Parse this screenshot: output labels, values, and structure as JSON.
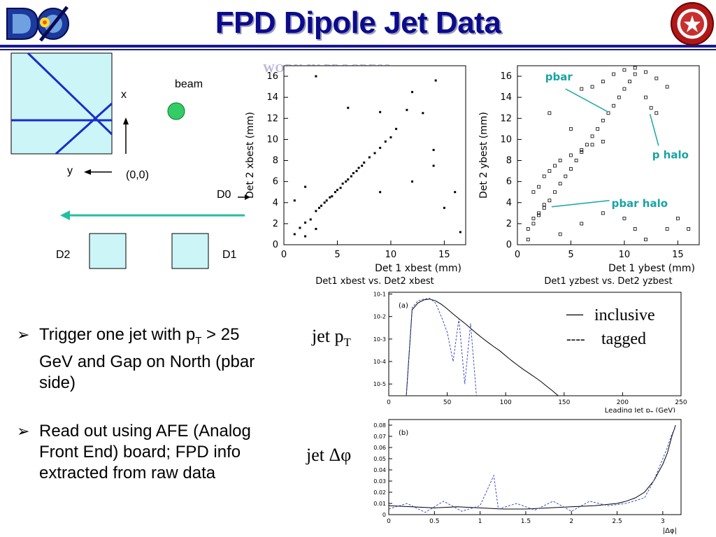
{
  "title": "FPD Dipole Jet Data",
  "watermark": "WORK IN PROGRESS",
  "geometry_diagram": {
    "beam_label": "beam",
    "x_label": "x",
    "y_label": "y",
    "origin_label": "(0,0)",
    "d0_label": "D0",
    "d1_label": "D1",
    "d2_label": "D2"
  },
  "scatter_left": {
    "ylabel": "Det 2 xbest (mm)",
    "xlabel": "Det 1 xbest (mm)",
    "caption": "Det1 xbest vs. Det2 xbest",
    "xticks": [
      "0",
      "5",
      "10",
      "15"
    ],
    "yticks": [
      "0",
      "2",
      "4",
      "6",
      "8",
      "10",
      "12",
      "14",
      "16"
    ]
  },
  "scatter_right": {
    "ylabel": "Det 2 ybest (mm)",
    "xlabel": "Det 1 ybest (mm)",
    "caption": "Det1 yzbest vs. Det2 yzbest",
    "xticks": [
      "0",
      "5",
      "10",
      "15"
    ],
    "yticks": [
      "0",
      "2",
      "4",
      "6",
      "8",
      "10",
      "12",
      "14",
      "16"
    ],
    "annotations": {
      "pbar": "pbar",
      "p_halo": "p halo",
      "pbar_halo": "pbar halo"
    },
    "annotation_color": "#1aa3a3"
  },
  "hist_pt": {
    "panel_tag": "(a)",
    "xlabel": "Leading Jet p",
    "xlabel_sub": "T",
    "xlabel_unit": " (GeV)",
    "xticks": [
      "0",
      "50",
      "100",
      "150",
      "200",
      "250"
    ],
    "yticks": [
      "10-1",
      "10-2",
      "10-3",
      "10-4",
      "10-5"
    ],
    "side_label_main": "jet p",
    "side_label_sub": "T"
  },
  "hist_dphi": {
    "panel_tag": "(b)",
    "xlabel": "|Δφ|",
    "xticks": [
      "0",
      "0.5",
      "1",
      "1.5",
      "2",
      "2.5",
      "3"
    ],
    "yticks": [
      "0",
      "0.01",
      "0.02",
      "0.03",
      "0.04",
      "0.05",
      "0.06",
      "0.07",
      "0.08"
    ],
    "side_label": "jet Δφ"
  },
  "legend": {
    "inclusive_marker": "—",
    "inclusive": "inclusive",
    "tagged_marker": "----",
    "tagged": "tagged"
  },
  "bullets": [
    {
      "marker": "➢",
      "text_a": "Trigger one jet with p",
      "text_sub": "T",
      "text_b": " > 25 GeV and Gap on North (pbar side)"
    },
    {
      "marker": "➢",
      "text_a": "Read out using AFE (Analog Front End) board; FPD info extracted from raw data",
      "text_sub": "",
      "text_b": ""
    }
  ],
  "colors": {
    "title": "#0b0b8c",
    "detector_fill": "#ccf5f7",
    "beam_arrow": "#22c0a0",
    "beam_dot": "#33cc66",
    "diagram_lines": "#1a2ccc"
  },
  "chart_data": [
    {
      "type": "scatter",
      "title": "Det1 xbest vs. Det2 xbest",
      "xlabel": "Det 1 xbest (mm)",
      "ylabel": "Det 2 xbest (mm)",
      "xlim": [
        0,
        17
      ],
      "ylim": [
        0,
        17
      ],
      "points": [
        [
          1,
          1
        ],
        [
          1.5,
          1.6
        ],
        [
          2,
          2.1
        ],
        [
          2.5,
          2.4
        ],
        [
          3,
          3.2
        ],
        [
          3.3,
          3.5
        ],
        [
          3.5,
          3.7
        ],
        [
          3.8,
          4
        ],
        [
          4,
          4.2
        ],
        [
          4.3,
          4.5
        ],
        [
          4.5,
          4.6
        ],
        [
          4.8,
          5
        ],
        [
          5,
          5.2
        ],
        [
          5.3,
          5.4
        ],
        [
          5.5,
          5.8
        ],
        [
          5.8,
          6
        ],
        [
          6,
          6.2
        ],
        [
          6.3,
          6.5
        ],
        [
          6.5,
          6.8
        ],
        [
          6.8,
          7
        ],
        [
          7,
          7.3
        ],
        [
          7.3,
          7.5
        ],
        [
          7.5,
          7.8
        ],
        [
          8,
          8.3
        ],
        [
          8.5,
          8.7
        ],
        [
          9,
          9.2
        ],
        [
          9.5,
          9.8
        ],
        [
          10,
          10.2
        ],
        [
          10.5,
          11
        ],
        [
          2,
          0.8
        ],
        [
          3,
          1.5
        ],
        [
          1,
          4.2
        ],
        [
          2,
          5.5
        ],
        [
          9,
          5
        ],
        [
          12,
          6
        ],
        [
          14,
          7.5
        ],
        [
          15,
          3.5
        ],
        [
          16.5,
          1.2
        ],
        [
          14,
          9
        ],
        [
          13,
          12.5
        ],
        [
          11.5,
          12.8
        ],
        [
          12,
          14.5
        ],
        [
          3,
          16
        ],
        [
          14.2,
          15.6
        ],
        [
          9,
          12.6
        ],
        [
          6,
          13
        ],
        [
          16,
          5
        ]
      ]
    },
    {
      "type": "scatter",
      "title": "Det1 yzbest vs. Det2 yzbest",
      "xlabel": "Det 1 ybest (mm)",
      "ylabel": "Det 2 ybest (mm)",
      "xlim": [
        0,
        17
      ],
      "ylim": [
        0,
        17
      ],
      "series": [
        {
          "name": "pbar",
          "points": [
            [
              1.5,
              2
            ],
            [
              2,
              2.8
            ],
            [
              2.5,
              3.5
            ],
            [
              3,
              4.2
            ],
            [
              3.5,
              5
            ],
            [
              4,
              5.8
            ],
            [
              4.5,
              6.5
            ],
            [
              5,
              7.2
            ],
            [
              5.5,
              8
            ],
            [
              6,
              8.8
            ],
            [
              6.5,
              9.5
            ],
            [
              7,
              10.3
            ],
            [
              7.5,
              11
            ],
            [
              8,
              11.8
            ],
            [
              8.5,
              12.5
            ],
            [
              9,
              13.2
            ],
            [
              9.5,
              14
            ],
            [
              10,
              14.8
            ],
            [
              10.5,
              15.5
            ],
            [
              11,
              16.2
            ]
          ]
        },
        {
          "name": "p halo",
          "points": [
            [
              6,
              14.8
            ],
            [
              7,
              15
            ],
            [
              8,
              15.5
            ],
            [
              9,
              16.2
            ],
            [
              10,
              16.6
            ],
            [
              11,
              16.8
            ],
            [
              12,
              16.4
            ],
            [
              12.5,
              13
            ],
            [
              13,
              12.5
            ]
          ]
        },
        {
          "name": "pbar halo",
          "points": [
            [
              1,
              1.5
            ],
            [
              1.5,
              2.5
            ],
            [
              2,
              3
            ],
            [
              2.5,
              3.8
            ],
            [
              1.5,
              5
            ],
            [
              2,
              5.5
            ],
            [
              2.5,
              6.5
            ],
            [
              3,
              7
            ],
            [
              3.5,
              7.5
            ],
            [
              4,
              8
            ],
            [
              5,
              8.5
            ],
            [
              6,
              9
            ],
            [
              7,
              9.5
            ],
            [
              8,
              9.8
            ]
          ]
        },
        {
          "name": "",
          "points": [
            [
              1,
              0.5
            ],
            [
              4,
              1
            ],
            [
              6,
              2
            ],
            [
              8,
              3
            ],
            [
              10,
              2.5
            ],
            [
              11,
              1.5
            ],
            [
              12,
              0.5
            ],
            [
              14,
              1.5
            ],
            [
              15,
              2.5
            ],
            [
              16,
              1.5
            ],
            [
              3,
              12.5
            ],
            [
              5,
              11
            ],
            [
              14,
              15
            ],
            [
              13,
              15.8
            ],
            [
              12,
              14
            ]
          ]
        }
      ]
    },
    {
      "type": "line",
      "title": "(a)",
      "xlabel": "Leading Jet pT (GeV)",
      "ylabel": "",
      "log_y": true,
      "xlim": [
        0,
        250
      ],
      "ylim": [
        3e-06,
        0.12
      ],
      "series": [
        {
          "name": "inclusive",
          "x": [
            15,
            20,
            25,
            30,
            35,
            40,
            45,
            50,
            55,
            60,
            65,
            70,
            75,
            80,
            85,
            90,
            95,
            100,
            105,
            110,
            115,
            120,
            125,
            130,
            135,
            140,
            145,
            150
          ],
          "values": [
            3e-06,
            0.02,
            0.04,
            0.055,
            0.06,
            0.05,
            0.035,
            0.022,
            0.013,
            0.008,
            0.005,
            0.003,
            0.0018,
            0.0011,
            0.0007,
            0.00045,
            0.0003,
            0.00018,
            0.00011,
            7e-05,
            4.5e-05,
            3e-05,
            2e-05,
            1.3e-05,
            8e-06,
            5e-06,
            3e-06,
            3e-06
          ]
        },
        {
          "name": "tagged",
          "x": [
            15,
            20,
            25,
            30,
            35,
            40,
            45,
            50,
            55,
            60,
            65,
            70,
            75
          ],
          "values": [
            3e-06,
            0.025,
            0.05,
            0.06,
            0.065,
            0.04,
            0.01,
            0.002,
            0.0001,
            0.008,
            1e-05,
            0.005,
            3e-06
          ]
        }
      ]
    },
    {
      "type": "line",
      "title": "(b)",
      "xlabel": "|Δφ|",
      "ylabel": "",
      "xlim": [
        0,
        3.2
      ],
      "ylim": [
        0,
        0.085
      ],
      "series": [
        {
          "name": "inclusive",
          "x": [
            0,
            0.25,
            0.5,
            0.75,
            1,
            1.25,
            1.5,
            1.75,
            2,
            2.25,
            2.5,
            2.6,
            2.7,
            2.8,
            2.9,
            3,
            3.05,
            3.1,
            3.14
          ],
          "values": [
            0.008,
            0.007,
            0.006,
            0.007,
            0.006,
            0.005,
            0.005,
            0.006,
            0.007,
            0.008,
            0.01,
            0.012,
            0.015,
            0.02,
            0.03,
            0.045,
            0.055,
            0.07,
            0.08
          ]
        },
        {
          "name": "tagged",
          "x": [
            0,
            0.2,
            0.4,
            0.6,
            0.8,
            1,
            1.15,
            1.2,
            1.4,
            1.6,
            1.8,
            2,
            2.2,
            2.4,
            2.6,
            2.8,
            2.9,
            3,
            3.05,
            3.1,
            3.14
          ],
          "values": [
            0.005,
            0.01,
            0.002,
            0.012,
            0.003,
            0.008,
            0.035,
            0.005,
            0.01,
            0.004,
            0.012,
            0.003,
            0.012,
            0.008,
            0.01,
            0.015,
            0.03,
            0.05,
            0.06,
            0.072,
            0.078
          ]
        }
      ]
    }
  ]
}
